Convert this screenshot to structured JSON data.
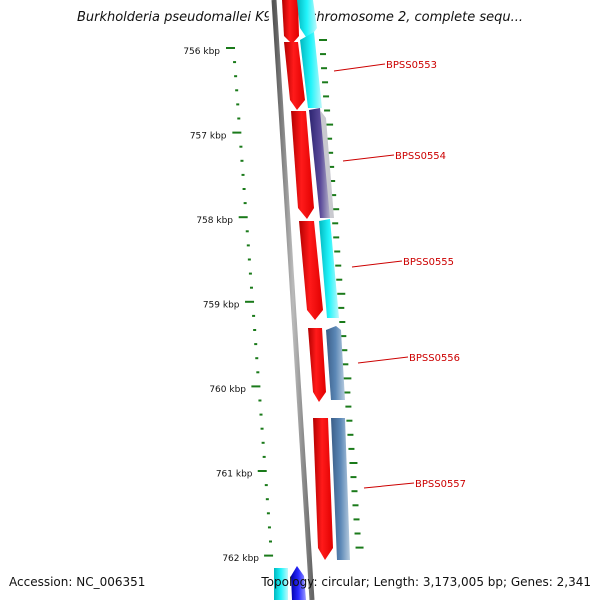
{
  "map": {
    "title": "Burkholderia pseudomallei K96243 chromosome 2, complete sequ...",
    "accession_text": "Accession: NC_006351",
    "summary_text": "Topology: circular; Length: 3,173,005 bp; Genes: 2,341"
  },
  "ruler": {
    "major_labels": [
      "756 kbp",
      "757 kbp",
      "758 kbp",
      "759 kbp",
      "760 kbp",
      "761 kbp",
      "762 kbp"
    ]
  },
  "genes": [
    {
      "name": "BPSS0553",
      "strand_color": "#00e5ee",
      "track_color": "#ff0000"
    },
    {
      "name": "BPSS0554",
      "strand_color": "#4b3c8c",
      "track_color": "#ff0000"
    },
    {
      "name": "BPSS0555",
      "strand_color": "#00e5ee",
      "track_color": "#ff0000"
    },
    {
      "name": "BPSS0556",
      "strand_color": "#4f79a8",
      "track_color": "#ff0000"
    },
    {
      "name": "BPSS0557",
      "strand_color": "#4f79a8",
      "track_color": "#ff0000"
    }
  ],
  "colors": {
    "backbone": "#7f7f7f",
    "tick": "#1a7a1a",
    "label": "#cc0000",
    "forward_feature": "#ff0000",
    "cds_cyan": "#00e5ee",
    "cds_steel": "#4f79a8",
    "cds_purple": "#4b3c8c",
    "cds_blue": "#0000ff"
  }
}
